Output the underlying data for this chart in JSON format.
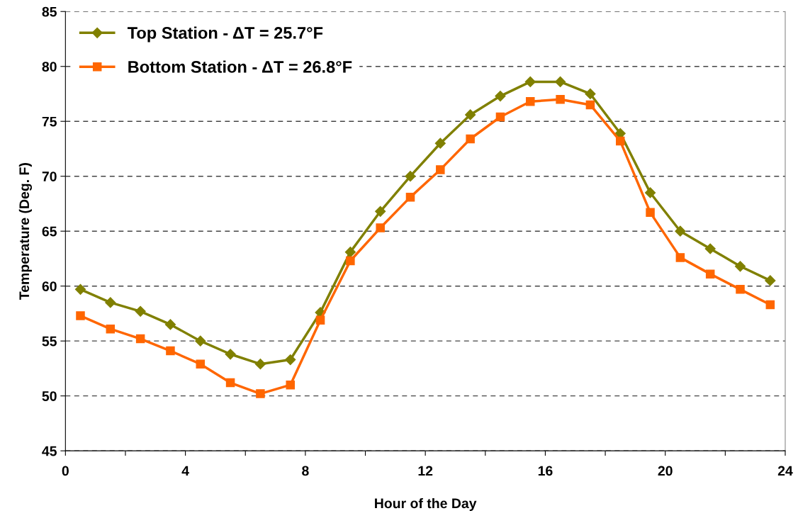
{
  "chart_data": {
    "type": "line",
    "xlabel": "Hour of the Day",
    "ylabel": "Temperature (Deg. F)",
    "x": [
      0.5,
      1.5,
      2.5,
      3.5,
      4.5,
      5.5,
      6.5,
      7.5,
      8.5,
      9.5,
      10.5,
      11.5,
      12.5,
      13.5,
      14.5,
      15.5,
      16.5,
      17.5,
      18.5,
      19.5,
      20.5,
      21.5,
      22.5,
      23.5
    ],
    "series": [
      {
        "name": "Top Station - ΔT = 25.7°F",
        "color": "#808000",
        "marker": "diamond",
        "values": [
          59.7,
          58.5,
          57.7,
          56.5,
          55.0,
          53.8,
          52.9,
          53.3,
          57.6,
          63.1,
          66.8,
          70.0,
          73.0,
          75.6,
          77.3,
          78.6,
          78.6,
          77.5,
          73.9,
          68.5,
          65.0,
          63.4,
          61.8,
          60.5
        ]
      },
      {
        "name": "Bottom Station - ΔT = 26.8°F",
        "color": "#ff6600",
        "marker": "square",
        "values": [
          57.3,
          56.1,
          55.2,
          54.1,
          52.9,
          51.2,
          50.2,
          51.0,
          56.9,
          62.3,
          65.3,
          68.1,
          70.6,
          73.4,
          75.4,
          76.8,
          77.0,
          76.5,
          73.2,
          66.7,
          62.6,
          61.1,
          59.7,
          58.3
        ]
      }
    ],
    "xlim": [
      0,
      24
    ],
    "xticks": [
      0,
      {
        "value": 2,
        "label": null
      },
      4,
      {
        "value": 6,
        "label": null
      },
      8,
      {
        "value": 10,
        "label": null
      },
      12,
      {
        "value": 14,
        "label": null
      },
      16,
      {
        "value": 18,
        "label": null
      },
      20,
      {
        "value": 22,
        "label": null
      },
      24
    ],
    "ylim": [
      45,
      85
    ],
    "yticks": [
      45,
      50,
      55,
      60,
      65,
      70,
      75,
      80,
      85
    ],
    "grid": "y",
    "legend": "top left",
    "line_style": "solid"
  }
}
